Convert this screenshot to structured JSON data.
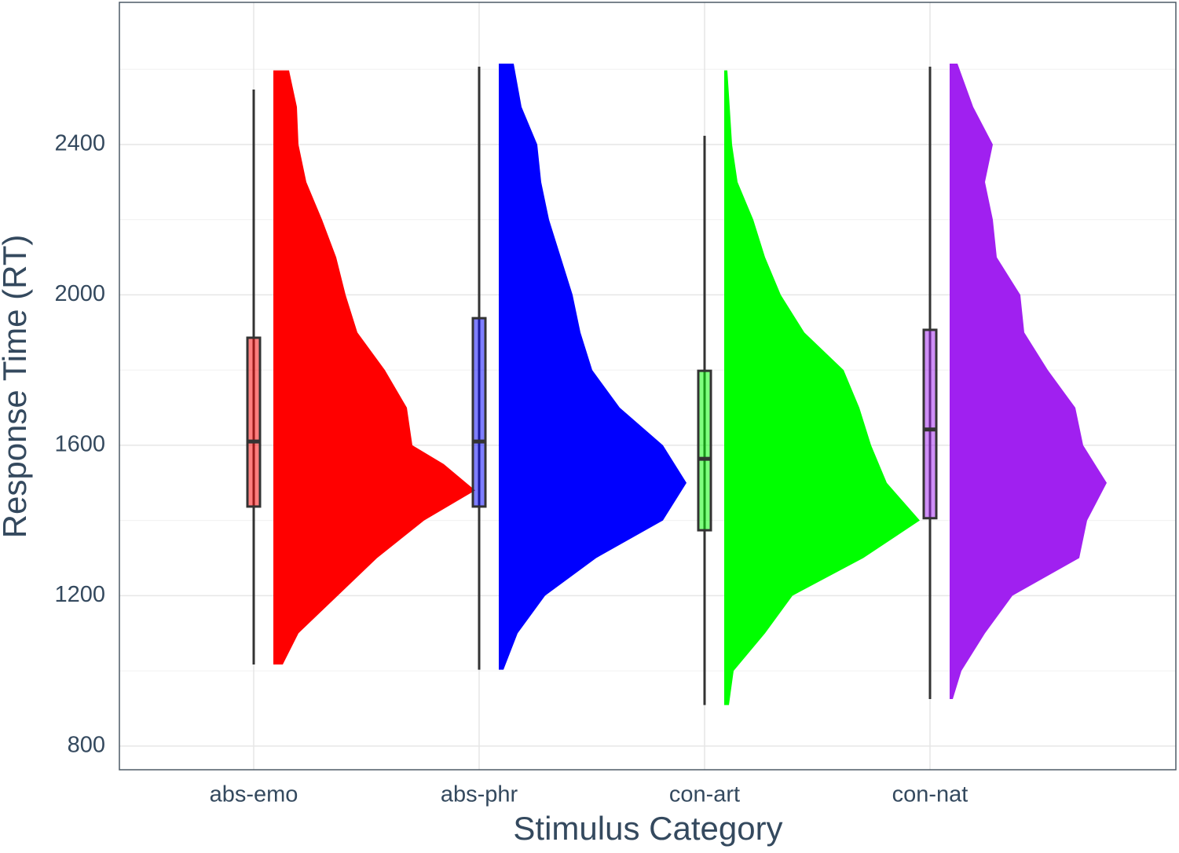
{
  "chart_data": {
    "type": "raincloud",
    "x_label": "Stimulus Category",
    "y_label": "Response Time (RT)",
    "categories": [
      "abs-emo",
      "abs-phr",
      "con-art",
      "con-nat"
    ],
    "ylim": [
      737,
      2778
    ],
    "yticks": [
      800,
      1200,
      1600,
      2000,
      2400
    ],
    "grid": true,
    "series": [
      {
        "color": "#ff0000",
        "box": {
          "low": 1017,
          "q1": 1437,
          "median": 1610,
          "q3": 1886,
          "high": 2546
        },
        "violin": {
          "y": [
            1017,
            1100,
            1200,
            1300,
            1400,
            1480,
            1550,
            1600,
            1700,
            1800,
            1900,
            2000,
            2100,
            2200,
            2300,
            2400,
            2500,
            2597
          ],
          "density": [
            12,
            32,
            82,
            132,
            192,
            257,
            217,
            177,
            170,
            142,
            107,
            92,
            80,
            62,
            42,
            32,
            30,
            20
          ]
        }
      },
      {
        "color": "#0000ff",
        "box": {
          "low": 1003,
          "q1": 1437,
          "median": 1610,
          "q3": 1938,
          "high": 2607
        },
        "violin": {
          "y": [
            1003,
            1100,
            1200,
            1300,
            1400,
            1500,
            1600,
            1700,
            1800,
            1900,
            2000,
            2100,
            2200,
            2300,
            2400,
            2500,
            2615
          ],
          "density": [
            6,
            24,
            59,
            124,
            209,
            239,
            209,
            154,
            119,
            104,
            94,
            79,
            64,
            54,
            49,
            29,
            19
          ]
        }
      },
      {
        "color": "#00ff00",
        "box": {
          "low": 909,
          "q1": 1374,
          "median": 1564,
          "q3": 1798,
          "high": 2423
        },
        "violin": {
          "y": [
            909,
            1000,
            1100,
            1200,
            1300,
            1400,
            1500,
            1600,
            1700,
            1800,
            1900,
            2000,
            2100,
            2200,
            2300,
            2400,
            2500,
            2597
          ],
          "density": [
            6,
            12,
            52,
            87,
            177,
            249,
            207,
            187,
            172,
            152,
            102,
            72,
            52,
            37,
            17,
            10,
            7,
            4
          ]
        }
      },
      {
        "color": "#a020f0",
        "box": {
          "low": 925,
          "q1": 1406,
          "median": 1642,
          "q3": 1907,
          "high": 2607
        },
        "violin": {
          "y": [
            925,
            1000,
            1100,
            1200,
            1300,
            1400,
            1500,
            1600,
            1700,
            1800,
            1900,
            2000,
            2100,
            2200,
            2300,
            2400,
            2500,
            2615
          ],
          "density": [
            4,
            15,
            45,
            80,
            165,
            175,
            200,
            170,
            160,
            125,
            95,
            90,
            60,
            55,
            45,
            55,
            30,
            10
          ]
        }
      }
    ]
  }
}
